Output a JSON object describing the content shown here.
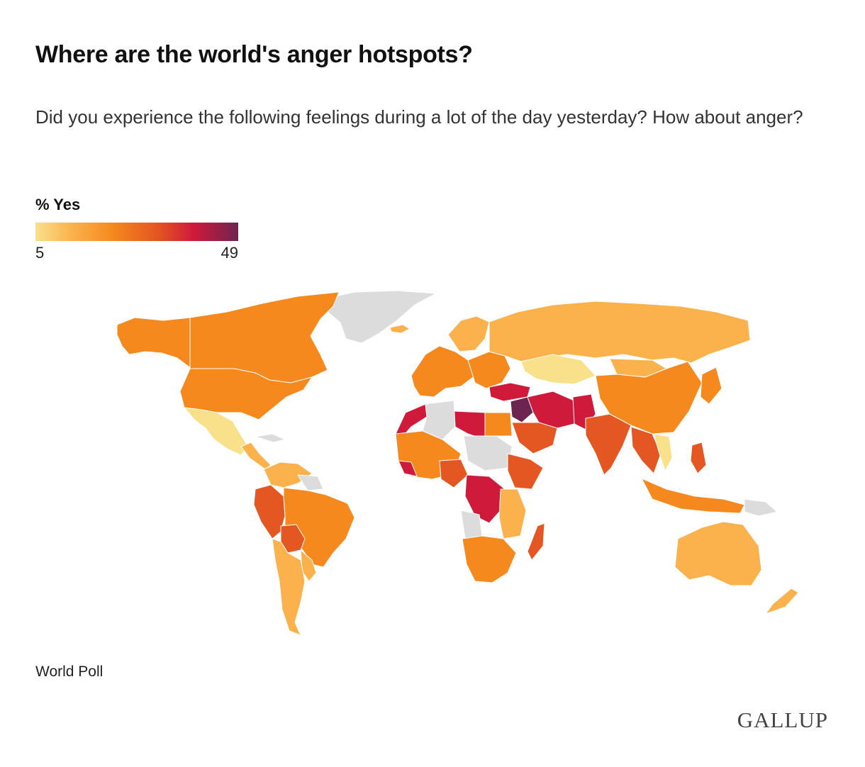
{
  "header": {
    "title": "Where are the world's anger hotspots?",
    "subtitle": "Did you experience the following feelings during a lot of the day yesterday? How about anger?"
  },
  "legend": {
    "title": "% Yes",
    "min": "5",
    "max": "49"
  },
  "colors": {
    "no_data": "#dcdcdc",
    "lightest": "#f9e08b",
    "light": "#fbb24d",
    "mid": "#f5891e",
    "dark": "#e45622",
    "red": "#cf1a3b",
    "darkest": "#6e2450"
  },
  "footer": {
    "source": "World Poll",
    "brand": "GALLUP"
  }
}
